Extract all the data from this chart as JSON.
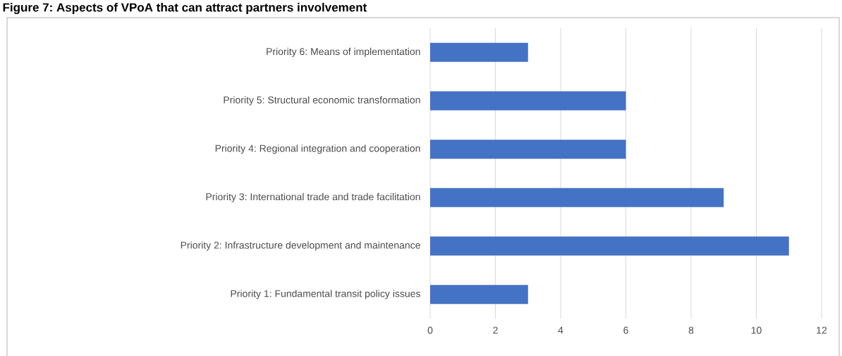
{
  "chart_data": {
    "type": "bar",
    "orientation": "horizontal",
    "title": "Figure 7: Aspects of VPoA that can attract partners involvement",
    "categories": [
      "Priority 6: Means of implementation",
      "Priority 5: Structural economic transformation",
      "Priority 4: Regional integration and cooperation",
      "Priority 3: International trade and trade facilitation",
      "Priority 2: Infrastructure development and maintenance",
      "Priority 1: Fundamental transit policy issues"
    ],
    "values": [
      3,
      6,
      6,
      9,
      11,
      3
    ],
    "color": "#4472c4",
    "xlim": [
      0,
      12
    ],
    "xticks": [
      0,
      2,
      4,
      6,
      8,
      10,
      12
    ],
    "grid": "x"
  }
}
